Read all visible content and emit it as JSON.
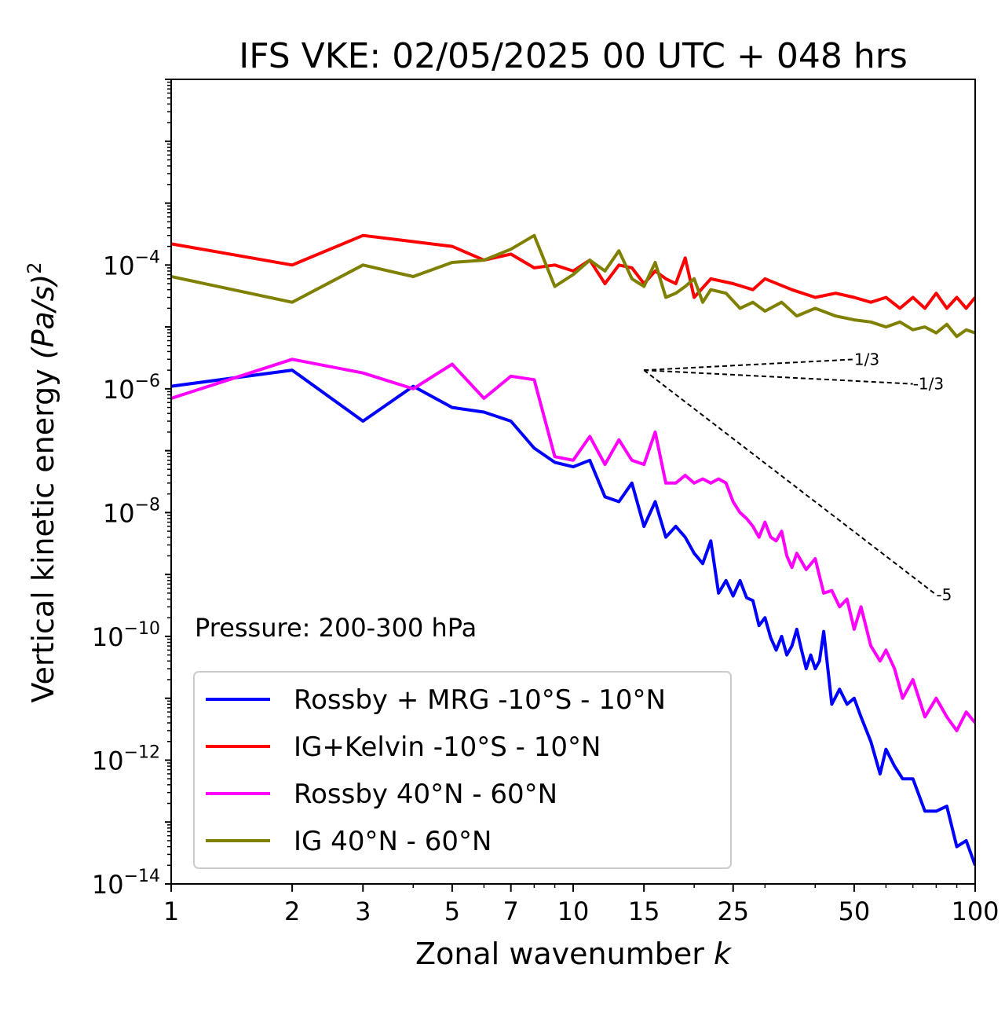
{
  "chart_data": {
    "type": "line",
    "title": "IFS VKE: 02/05/2025 00 UTC + 048 hrs",
    "xlabel_text": "Zonal wavenumber ",
    "xlabel_var": "k",
    "ylabel_text": "Vertical kinetic energy ",
    "ylabel_unit": "(Pa/s)",
    "ylabel_exp": "2",
    "annotation": "Pressure: 200-300 hPa",
    "x_scale": "log",
    "y_scale": "log",
    "xlim": [
      1,
      100
    ],
    "ylim": [
      1e-14,
      0.1
    ],
    "x_ticks": [
      1,
      2,
      3,
      5,
      7,
      10,
      15,
      25,
      50,
      100
    ],
    "x_tick_labels": [
      "1",
      "2",
      "3",
      "5",
      "7",
      "10",
      "15",
      "25",
      "50",
      "100"
    ],
    "y_tick_exponents": [
      -4,
      -6,
      -8,
      -10,
      -12,
      -14
    ],
    "y_tick_base": "10",
    "y_tick_exp_labels": [
      "−4",
      "−6",
      "−8",
      "−10",
      "−12",
      "−14"
    ],
    "legend_position": "lower left",
    "series": [
      {
        "name": "Rossby + MRG -10°S - 10°N",
        "color": "#0000ff",
        "x": [
          1,
          2,
          3,
          4,
          5,
          6,
          7,
          8,
          9,
          10,
          11,
          12,
          13,
          14,
          15,
          16,
          17,
          18,
          19,
          20,
          21,
          22,
          23,
          24,
          25,
          26,
          27,
          28,
          29,
          30,
          31,
          32,
          33,
          34,
          35,
          36,
          37,
          38,
          39,
          40,
          41,
          42,
          44,
          46,
          48,
          50,
          52,
          55,
          58,
          60,
          63,
          66,
          70,
          75,
          80,
          85,
          90,
          95,
          100
        ],
        "y": [
          1.1e-06,
          2e-06,
          3e-07,
          1.1e-06,
          5e-07,
          4.2e-07,
          3e-07,
          1.1e-07,
          6.5e-08,
          5.5e-08,
          7e-08,
          1.8e-08,
          1.5e-08,
          3e-08,
          6e-09,
          1.5e-08,
          4e-09,
          6e-09,
          4e-09,
          2.2e-09,
          1.5e-09,
          3.5e-09,
          5e-10,
          8e-10,
          4.5e-10,
          8e-10,
          4.2e-10,
          3.8e-10,
          1.5e-10,
          2e-10,
          9.5e-11,
          6e-11,
          1e-10,
          5e-11,
          7e-11,
          1.3e-10,
          6e-11,
          3e-11,
          5e-11,
          3e-11,
          4e-11,
          1.2e-10,
          8e-12,
          1.4e-11,
          8e-12,
          1e-11,
          5e-12,
          2e-12,
          6e-13,
          1.5e-12,
          8e-13,
          5e-13,
          5e-13,
          1.5e-13,
          1.5e-13,
          1.8e-13,
          4e-14,
          5e-14,
          2e-14
        ]
      },
      {
        "name": "IG+Kelvin -10°S - 10°N",
        "color": "#ff0000",
        "x": [
          1,
          2,
          3,
          5,
          6,
          7,
          8,
          9,
          10,
          11,
          12,
          13,
          14,
          15,
          16,
          17,
          18,
          19,
          20,
          22,
          25,
          28,
          30,
          35,
          40,
          45,
          50,
          55,
          60,
          65,
          70,
          75,
          80,
          85,
          90,
          95,
          100
        ],
        "y": [
          0.00022,
          0.0001,
          0.0003,
          0.0002,
          0.00012,
          0.00015,
          9e-05,
          0.0001,
          8e-05,
          0.00012,
          5e-05,
          0.0001,
          9e-05,
          5e-05,
          8e-05,
          6e-05,
          5e-05,
          0.00013,
          3e-05,
          6e-05,
          5e-05,
          4e-05,
          6e-05,
          4e-05,
          3e-05,
          3.5e-05,
          3e-05,
          2.5e-05,
          3e-05,
          2e-05,
          3e-05,
          2e-05,
          3.5e-05,
          2e-05,
          3e-05,
          2e-05,
          3e-05
        ]
      },
      {
        "name": "Rossby 40°N - 60°N",
        "color": "#ff00ff",
        "x": [
          1,
          2,
          3,
          4,
          5,
          6,
          7,
          8,
          9,
          10,
          11,
          12,
          13,
          14,
          15,
          16,
          17,
          18,
          19,
          20,
          21,
          22,
          23,
          24,
          25,
          26,
          27,
          28,
          29,
          30,
          31,
          32,
          33,
          34,
          35,
          36,
          38,
          40,
          42,
          44,
          46,
          48,
          50,
          52,
          55,
          58,
          60,
          63,
          66,
          70,
          75,
          80,
          85,
          90,
          95,
          100
        ],
        "y": [
          7e-07,
          3e-06,
          1.8e-06,
          1e-06,
          2.5e-06,
          7e-07,
          1.6e-06,
          1.4e-06,
          8e-08,
          7e-08,
          1.7e-07,
          6e-08,
          1.5e-07,
          7e-08,
          6e-08,
          2e-07,
          3e-08,
          3e-08,
          4e-08,
          3e-08,
          3.5e-08,
          3e-08,
          3.5e-08,
          3e-08,
          1.5e-08,
          1e-08,
          8e-09,
          6e-09,
          4e-09,
          7e-09,
          4e-09,
          3.5e-09,
          5e-09,
          2e-09,
          1.3e-09,
          2.2e-09,
          1.2e-09,
          1.8e-09,
          5e-10,
          5.5e-10,
          3e-10,
          4e-10,
          1.3e-10,
          3e-10,
          7e-11,
          4e-11,
          6e-11,
          3e-11,
          1e-11,
          2e-11,
          5e-12,
          1e-11,
          5e-12,
          3e-12,
          6e-12,
          4e-12
        ]
      },
      {
        "name": "IG 40°N - 60°N",
        "color": "#808000",
        "x": [
          1,
          2,
          3,
          4,
          5,
          6,
          7,
          8,
          9,
          10,
          11,
          12,
          13,
          14,
          15,
          16,
          17,
          18,
          19,
          20,
          21,
          22,
          24,
          26,
          28,
          30,
          33,
          36,
          40,
          45,
          50,
          55,
          60,
          65,
          70,
          75,
          80,
          85,
          90,
          95,
          100
        ],
        "y": [
          6.5e-05,
          2.5e-05,
          0.0001,
          6.5e-05,
          0.00011,
          0.00012,
          0.00018,
          0.0003,
          4.5e-05,
          7e-05,
          0.00012,
          8e-05,
          0.00017,
          6e-05,
          4.5e-05,
          0.00011,
          3e-05,
          3.5e-05,
          4.5e-05,
          6e-05,
          2.5e-05,
          4e-05,
          3.5e-05,
          2e-05,
          2.5e-05,
          1.8e-05,
          2.5e-05,
          1.5e-05,
          2e-05,
          1.5e-05,
          1.3e-05,
          1.2e-05,
          1e-05,
          1.2e-05,
          9e-06,
          1e-05,
          8e-06,
          1.1e-05,
          7e-06,
          9e-06,
          8e-06
        ]
      }
    ],
    "reference_slopes": [
      {
        "label": "1/3",
        "x": [
          15,
          50
        ],
        "y": [
          2e-06,
          2.99e-06
        ]
      },
      {
        "label": "-1/3",
        "x": [
          15,
          70
        ],
        "y": [
          2e-06,
          1.2e-06
        ]
      },
      {
        "label": "-5",
        "x": [
          15,
          80
        ],
        "y": [
          2e-06,
          4.7e-10
        ]
      }
    ]
  }
}
